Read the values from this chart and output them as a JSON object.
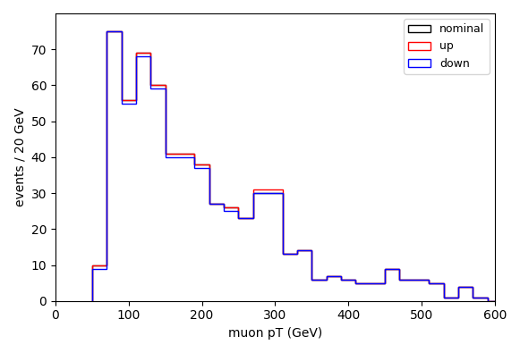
{
  "bin_edges": [
    50,
    70,
    90,
    110,
    130,
    150,
    170,
    190,
    210,
    230,
    250,
    270,
    290,
    310,
    330,
    350,
    370,
    390,
    410,
    430,
    450,
    470,
    490,
    510,
    530,
    550,
    570,
    590,
    610
  ],
  "nominal": [
    10,
    75,
    56,
    69,
    60,
    41,
    41,
    38,
    27,
    26,
    23,
    30,
    30,
    13,
    14,
    6,
    7,
    6,
    5,
    5,
    9,
    6,
    6,
    5,
    1,
    4,
    1,
    0
  ],
  "up": [
    10,
    75,
    56,
    69,
    60,
    41,
    41,
    38,
    27,
    26,
    23,
    31,
    31,
    13,
    14,
    6,
    7,
    6,
    5,
    5,
    9,
    6,
    6,
    5,
    1,
    4,
    1,
    0
  ],
  "down": [
    9,
    75,
    55,
    68,
    59,
    40,
    40,
    37,
    27,
    25,
    23,
    30,
    30,
    13,
    14,
    6,
    7,
    6,
    5,
    5,
    9,
    6,
    6,
    5,
    1,
    4,
    1,
    0
  ],
  "xlabel": "muon pT (GeV)",
  "ylabel": "events / 20 GeV",
  "xlim": [
    0,
    600
  ],
  "ylim": [
    0,
    80
  ],
  "yticks": [
    0,
    10,
    20,
    30,
    40,
    50,
    60,
    70
  ],
  "nominal_color": "black",
  "up_color": "red",
  "down_color": "blue",
  "legend_labels": [
    "nominal",
    "up",
    "down"
  ],
  "figsize": [
    5.81,
    3.95
  ],
  "dpi": 100
}
